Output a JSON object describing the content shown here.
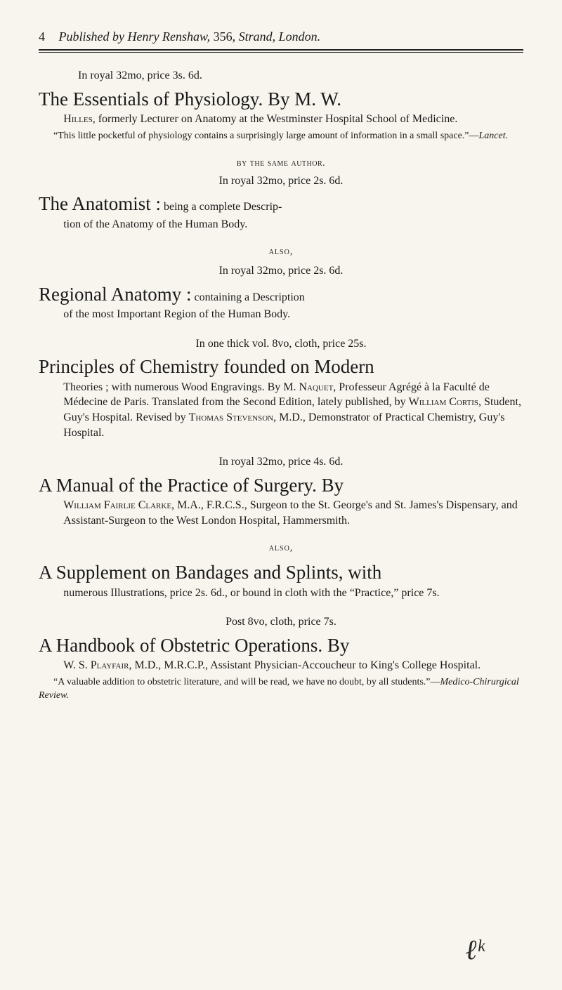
{
  "running_head": {
    "pagenum": "4",
    "leading_italic": "Published by Henry Renshaw,",
    "trailing": " 356, ",
    "trailing_italic": "Strand, London."
  },
  "entries": [
    {
      "preline_center": false,
      "preline": "In royal 32mo, price 3s. 6d.",
      "title_big": "The Essentials of Physiology.    By M. W.",
      "body_html": "<span class='cont'><span class='sc'>Hilles</span>, formerly Lecturer on Anatomy at the Westminster Hospital School of Medicine.</span>",
      "note_html": "“This little pocketful of physiology contains a surprisingly large amount of information in a small space.”—<span class='italic'>Lancet.</span>"
    },
    {
      "smallcaps_line": "by the same author.",
      "preline_center": true,
      "preline": "In royal 32mo, price 2s. 6d.",
      "title_big": "The Anatomist :",
      "title_after": " being a complete Descrip-",
      "body_html": "<span class='cont'>tion of the Anatomy of the Human Body.</span>"
    },
    {
      "also": "also,",
      "preline_center": true,
      "preline": "In royal 32mo, price 2s. 6d.",
      "title_big": "Regional Anatomy :",
      "title_after": " containing a Description",
      "body_html": "<span class='cont'>of the most Important Region of the Human Body.</span>"
    },
    {
      "preline_center": true,
      "preline": "In one thick vol. 8vo, cloth, price 25s.",
      "title_big": "Principles of Chemistry founded on Modern",
      "body_html": "<span class='cont'>Theories ; with numerous Wood Engravings. By M. <span class='sc'>Naquet</span>, Professeur Agrégé à la Faculté de Médecine de Paris. Translated from the Second Edition, lately published, by <span class='sc'>William Cortis</span>, Student, Guy's Hospital. Revised by <span class='sc'>Thomas Stevenson</span>, M.D., Demonstrator of Practical Chemistry, Guy's Hospital.</span>"
    },
    {
      "preline_center": true,
      "preline": "In royal 32mo, price 4s. 6d.",
      "title_big": "A Manual of the Practice of Surgery.    By",
      "body_html": "<span class='cont'><span class='sc'>William Fairlie Clarke</span>, M.A., F.R.C.S., Surgeon to the St. George's and St. James's Dispensary, and Assistant-Surgeon to the West London Hospital, Hammersmith.</span>"
    },
    {
      "also": "also,",
      "title_big": "A Supplement on Bandages and Splints, with",
      "body_html": "<span class='cont'>numerous Illustrations, price 2s. 6d., or bound in cloth with the “Practice,” price 7s.</span>"
    },
    {
      "preline_center": true,
      "preline": "Post 8vo, cloth, price 7s.",
      "title_big": "A Handbook of Obstetric Operations.    By",
      "body_html": "<span class='cont'>W. S. <span class='sc'>Playfair</span>, M.D., M.R.C.P., Assistant Physician-Accoucheur to King's College Hospital.</span>",
      "note_html": "“A valuable addition to obstetric literature, and will be read, we have no doubt, by all students.”—<span class='italic'>Medico-Chirurgical Review.</span>"
    }
  ],
  "doodle": "ℓᵏ"
}
